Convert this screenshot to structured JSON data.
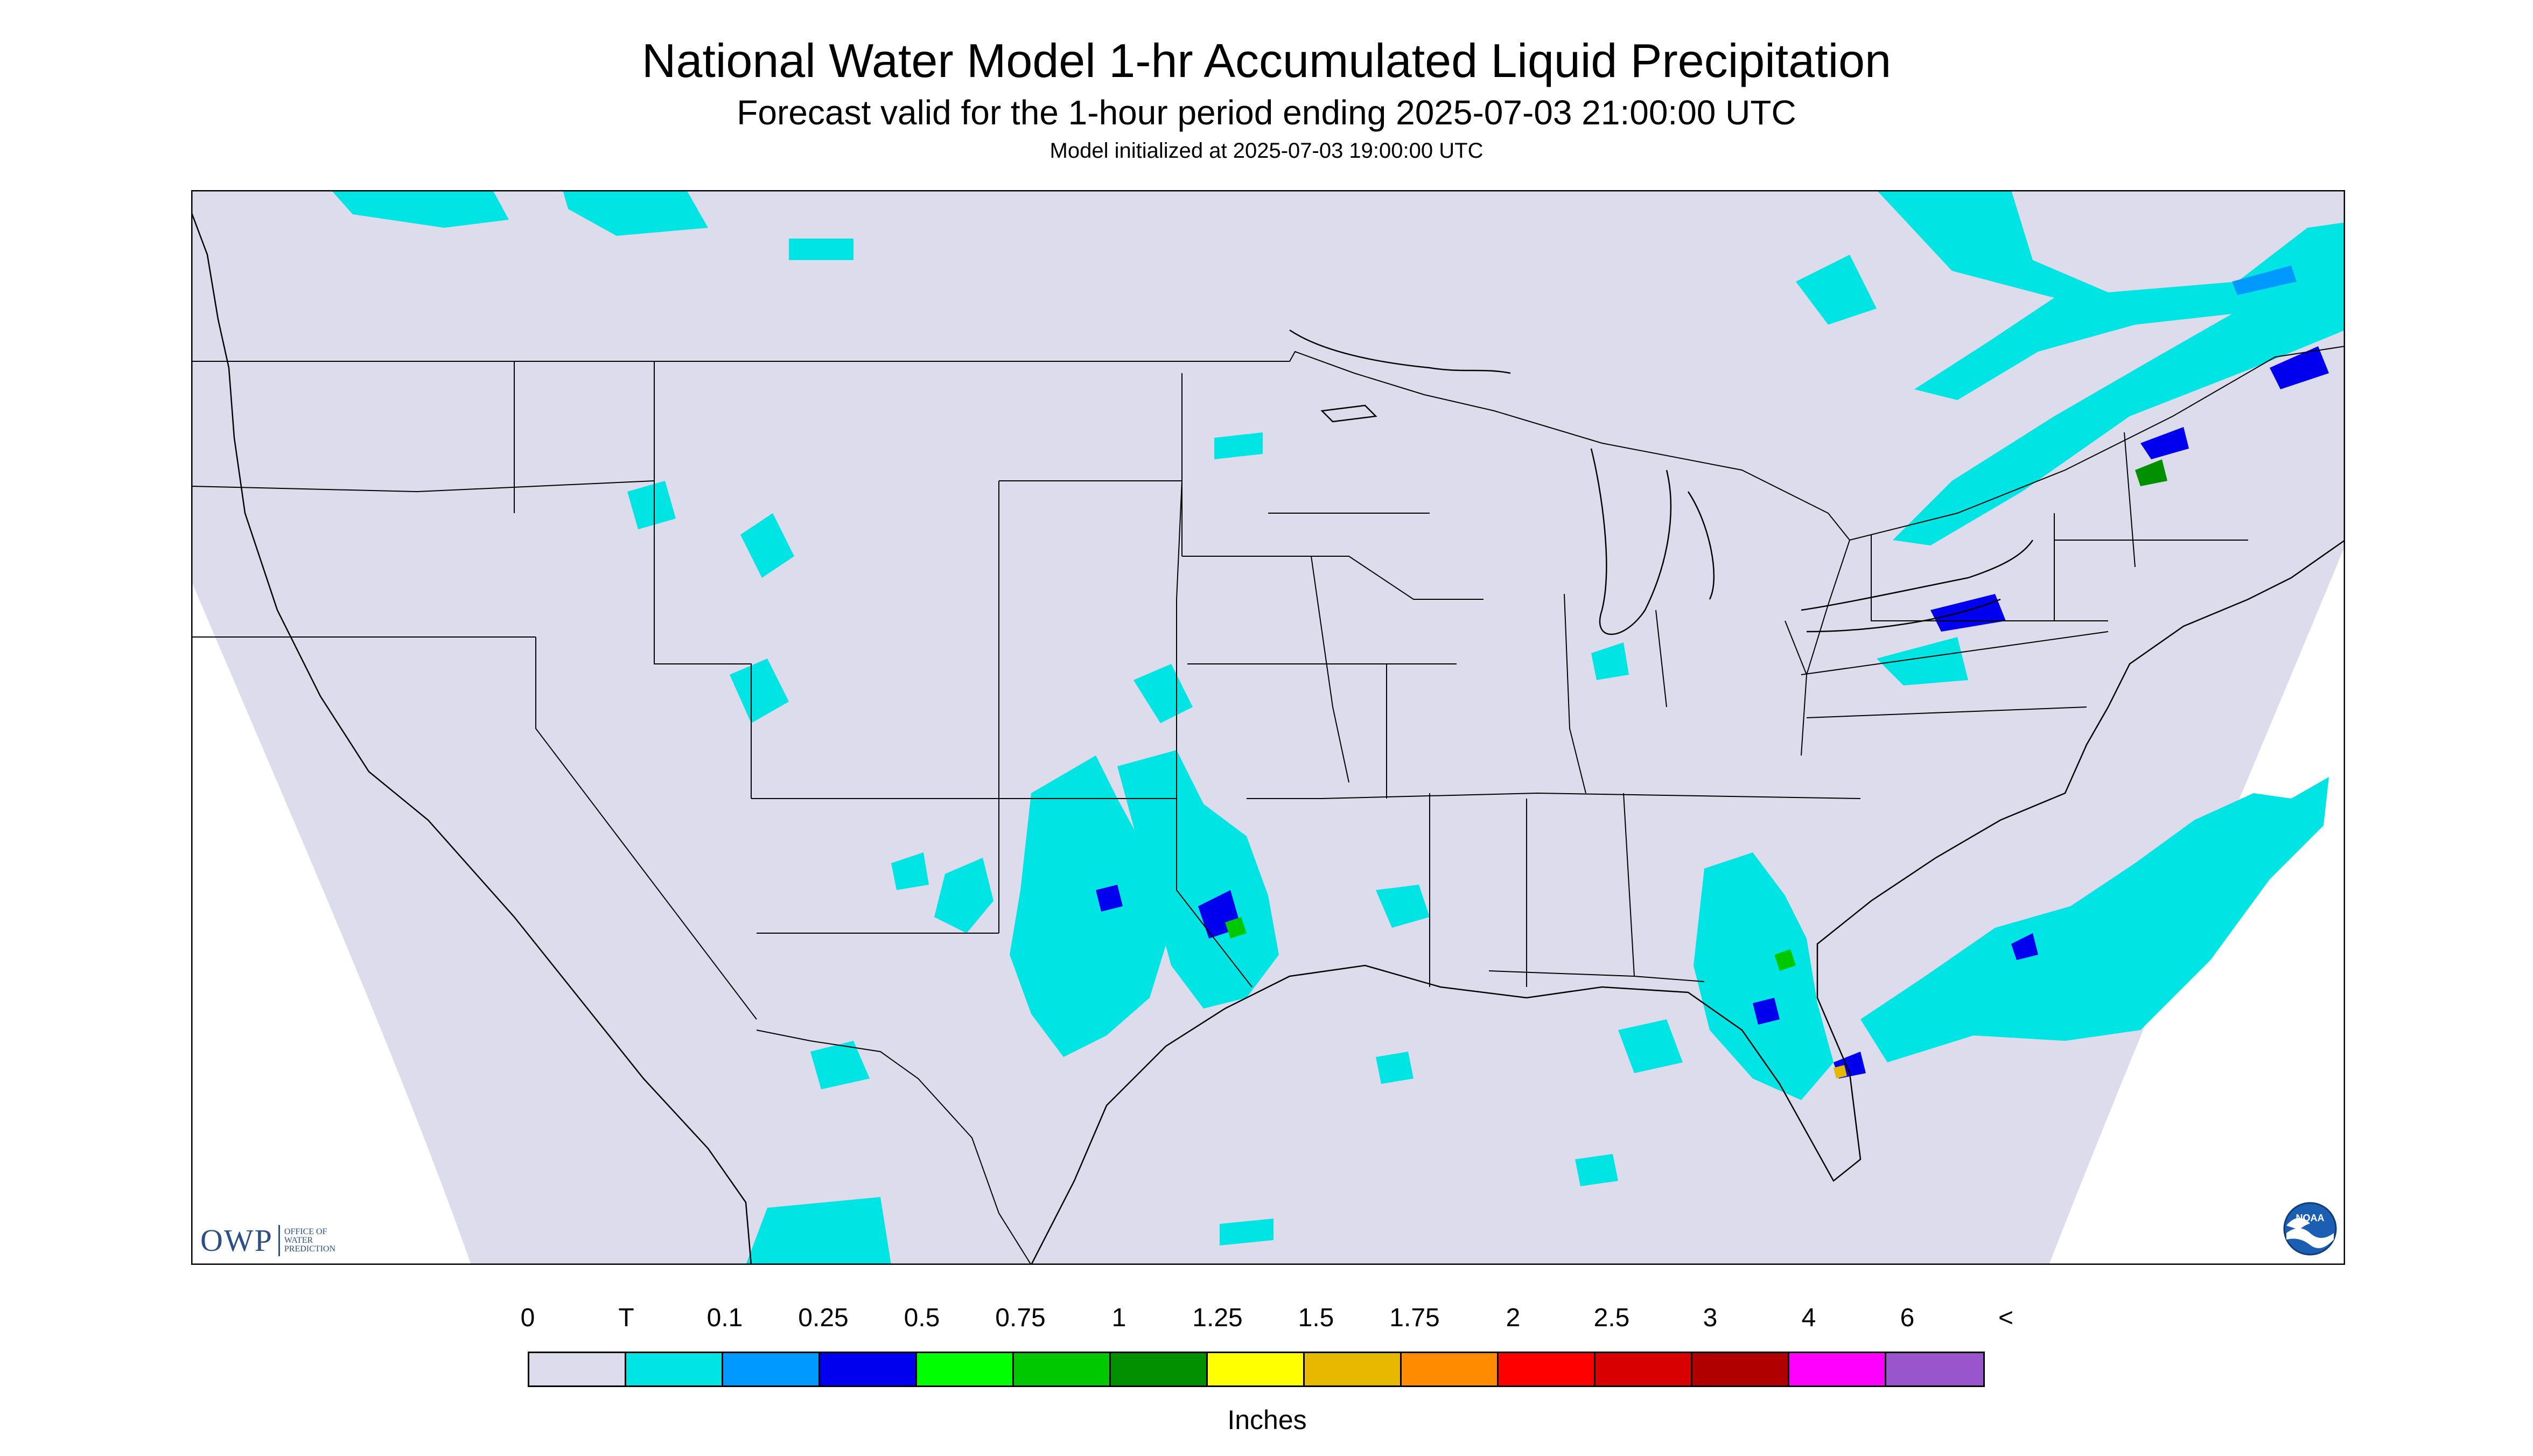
{
  "title": "National Water Model 1-hr Accumulated Liquid Precipitation",
  "subtitle": "Forecast valid for the 1-hour period ending 2025-07-03 21:00:00 UTC",
  "init_note": "Model initialized at 2025-07-03 19:00:00 UTC",
  "logos": {
    "owp_main": "OWP",
    "owp_sub": "OFFICE OF WATER PREDICTION",
    "noaa": "NOAA"
  },
  "legend": {
    "labels": [
      "0",
      "T",
      "0.1",
      "0.25",
      "0.5",
      "0.75",
      "1",
      "1.25",
      "1.5",
      "1.75",
      "2",
      "2.5",
      "3",
      "4",
      "6",
      "<"
    ],
    "colors": [
      "#dcdcec",
      "#00e4e4",
      "#0099ff",
      "#0000ee",
      "#00ff00",
      "#00c800",
      "#009000",
      "#ffff00",
      "#e6b800",
      "#ff8c00",
      "#ff0000",
      "#d80000",
      "#b00000",
      "#ff00ff",
      "#9955cc"
    ],
    "units": "Inches"
  },
  "map": {
    "background_color": "#dcdcec",
    "outside_color": "#ffffff",
    "border_color": "#000000"
  }
}
